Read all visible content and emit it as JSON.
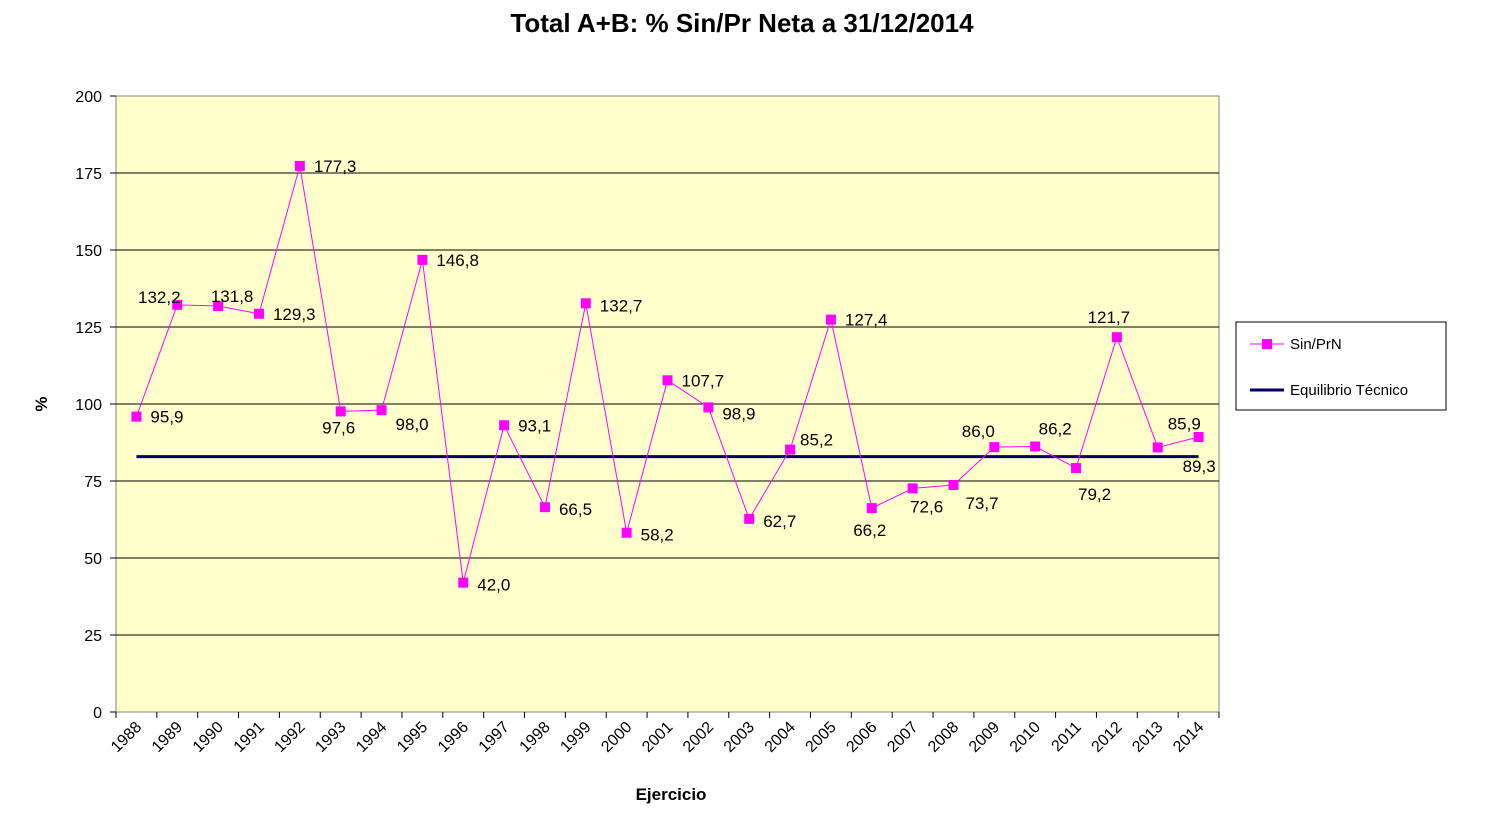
{
  "chart_data": {
    "type": "line",
    "title": "Total A+B: % Sin/Pr Neta a 31/12/2014",
    "xlabel": "Ejercicio",
    "ylabel": "%",
    "ylim": [
      0,
      200
    ],
    "yticks": [
      0,
      25,
      50,
      75,
      100,
      125,
      150,
      175,
      200
    ],
    "grid": true,
    "legend_position": "right",
    "plot_background": "#FFFFCC",
    "categories": [
      "1988",
      "1989",
      "1990",
      "1991",
      "1992",
      "1993",
      "1994",
      "1995",
      "1996",
      "1997",
      "1998",
      "1999",
      "2000",
      "2001",
      "2002",
      "2003",
      "2004",
      "2005",
      "2006",
      "2007",
      "2008",
      "2009",
      "2010",
      "2011",
      "2012",
      "2013",
      "2014"
    ],
    "series": [
      {
        "name": "Sin/PrN",
        "color": "#FF00FF",
        "marker": "square",
        "values": [
          95.9,
          132.2,
          131.8,
          129.3,
          177.3,
          97.6,
          98.0,
          146.8,
          42.0,
          93.1,
          66.5,
          132.7,
          58.2,
          107.7,
          98.9,
          62.7,
          85.2,
          127.4,
          66.2,
          72.6,
          73.7,
          86.0,
          86.2,
          79.2,
          121.7,
          85.9,
          89.3
        ],
        "labels": [
          "95,9",
          "132,2",
          "131,8",
          "129,3",
          "177,3",
          "97,6",
          "98,0",
          "146,8",
          "42,0",
          "93,1",
          "66,5",
          "132,7",
          "58,2",
          "107,7",
          "98,9",
          "62,7",
          "85,2",
          "127,4",
          "66,2",
          "72,6",
          "73,7",
          "86,0",
          "86,2",
          "79,2",
          "121,7",
          "85,9",
          "89,3"
        ]
      },
      {
        "name": "Equilibrio Técnico",
        "color": "#000066",
        "marker": "none",
        "values": [
          82.9,
          82.9,
          82.9,
          82.9,
          82.9,
          82.9,
          82.9,
          82.9,
          82.9,
          82.9,
          82.9,
          82.9,
          82.9,
          82.9,
          82.9,
          82.9,
          82.9,
          82.9,
          82.9,
          82.9,
          82.9,
          82.9,
          82.9,
          82.9,
          82.9,
          82.9,
          82.9
        ]
      }
    ]
  }
}
